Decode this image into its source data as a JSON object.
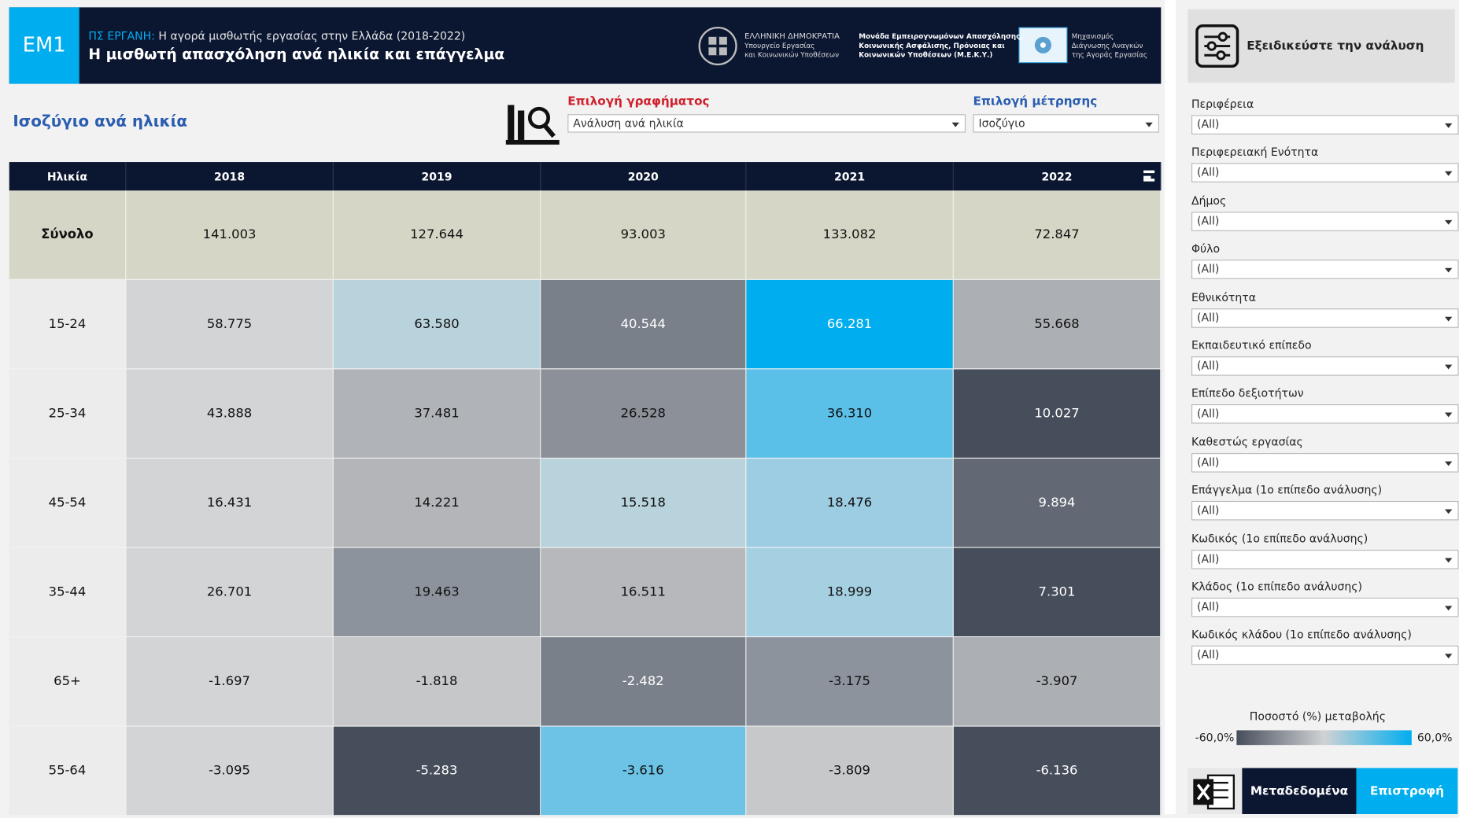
{
  "header": {
    "badge": "EM1",
    "system": "ΠΣ ΕΡΓΑΝΗ:",
    "subtitle": "Η αγορά μισθωτής εργασίας στην Ελλάδα (2018-2022)",
    "title": "Η μισθωτή απασχόληση ανά ηλικία και επάγγελμα",
    "logos": [
      [
        "ΕΛΛΗΝΙΚΗ ΔΗΜΟΚΡΑΤΙΑ",
        "Υπουργείο Εργασίας",
        "και Κοινωνικών Υποθέσεων"
      ],
      [
        "Μονάδα Εμπειρογνωμόνων Απασχόλησης,",
        "Κοινωνικής Ασφάλισης, Πρόνοιας και",
        "Κοινωνικών Υποθέσεων (Μ.Ε.Κ.Υ.)"
      ],
      [
        "Μηχανισμός",
        "Διάγνωσης Αναγκών",
        "της Αγοράς Εργασίας"
      ]
    ]
  },
  "view_title": "Ισοζύγιο ανά ηλικία",
  "chart_select": {
    "label": "Επιλογή γραφήματος",
    "value": "Ανάλυση ανά ηλικία"
  },
  "measure_select": {
    "label": "Επιλογή μέτρησης",
    "value": "Ισοζύγιο"
  },
  "table": {
    "columns": [
      "Ηλικία",
      "2018",
      "2019",
      "2020",
      "2021",
      "2022"
    ],
    "rows": [
      {
        "label": "Σύνολο",
        "cells": [
          "141.003",
          "127.644",
          "93.003",
          "133.082",
          "72.847"
        ],
        "colors": [
          "#d6d6c6",
          "#d6d6c6",
          "#d6d6c6",
          "#d6d6c6",
          "#d6d6c6"
        ]
      },
      {
        "label": "15-24",
        "cells": [
          "58.775",
          "63.580",
          "40.544",
          "66.281",
          "55.668"
        ],
        "colors": [
          "#d3d4d6",
          "#b9d3dd",
          "#7a8089",
          "#00adee",
          "#acafb4"
        ]
      },
      {
        "label": "25-34",
        "cells": [
          "43.888",
          "37.481",
          "26.528",
          "36.310",
          "10.027"
        ],
        "colors": [
          "#d3d4d6",
          "#b0b3b7",
          "#8b9099",
          "#5bc0e8",
          "#474e5b"
        ]
      },
      {
        "label": "45-54",
        "cells": [
          "16.431",
          "14.221",
          "15.518",
          "18.476",
          "9.894"
        ],
        "colors": [
          "#d3d4d6",
          "#b3b5b9",
          "#b9d3dd",
          "#9dcde3",
          "#626874"
        ]
      },
      {
        "label": "35-44",
        "cells": [
          "26.701",
          "19.463",
          "16.511",
          "18.999",
          "7.301"
        ],
        "colors": [
          "#d3d4d6",
          "#8c939c",
          "#b6b8bc",
          "#a5d0e2",
          "#474e5b"
        ]
      },
      {
        "label": "65+",
        "cells": [
          "-1.697",
          "-1.818",
          "-2.482",
          "-3.175",
          "-3.907"
        ],
        "colors": [
          "#d3d4d6",
          "#c5c7c9",
          "#7a8089",
          "#8c939c",
          "#acafb4"
        ]
      },
      {
        "label": "55-64",
        "cells": [
          "-3.095",
          "-5.283",
          "-3.616",
          "-3.809",
          "-6.136"
        ],
        "colors": [
          "#d3d4d6",
          "#474e5b",
          "#6cc3e6",
          "#c7c8ca",
          "#474e5b"
        ]
      }
    ]
  },
  "sidebar": {
    "title": "Εξειδικεύστε την ανάλυση",
    "filters": [
      {
        "label": "Περιφέρεια",
        "value": "(All)"
      },
      {
        "label": "Περιφερειακή Ενότητα",
        "value": "(All)"
      },
      {
        "label": "Δήμος",
        "value": "(All)"
      },
      {
        "label": "Φύλο",
        "value": "(All)"
      },
      {
        "label": "Εθνικότητα",
        "value": "(All)"
      },
      {
        "label": "Εκπαιδευτικό επίπεδο",
        "value": "(All)"
      },
      {
        "label": "Επίπεδο δεξιοτήτων",
        "value": "(All)"
      },
      {
        "label": "Καθεστώς εργασίας",
        "value": "(All)"
      },
      {
        "label": "Επάγγελμα (1ο επίπεδο ανάλυσης)",
        "value": "(All)"
      },
      {
        "label": "Κωδικός (1ο επίπεδο ανάλυσης)",
        "value": "(All)"
      },
      {
        "label": "Κλάδος (1ο επίπεδο ανάλυσης)",
        "value": "(All)"
      },
      {
        "label": "Κωδικός κλάδου (1ο επίπεδο ανάλυσης)",
        "value": "(All)"
      }
    ],
    "legend": {
      "title": "Ποσοστό (%) μεταβολής",
      "min": "-60,0%",
      "max": "60,0%",
      "colors": [
        "#474e5b",
        "#d0d2d4",
        "#00aeef"
      ]
    },
    "buttons": [
      "Μεταδεδομένα",
      "Επιστροφή"
    ]
  }
}
